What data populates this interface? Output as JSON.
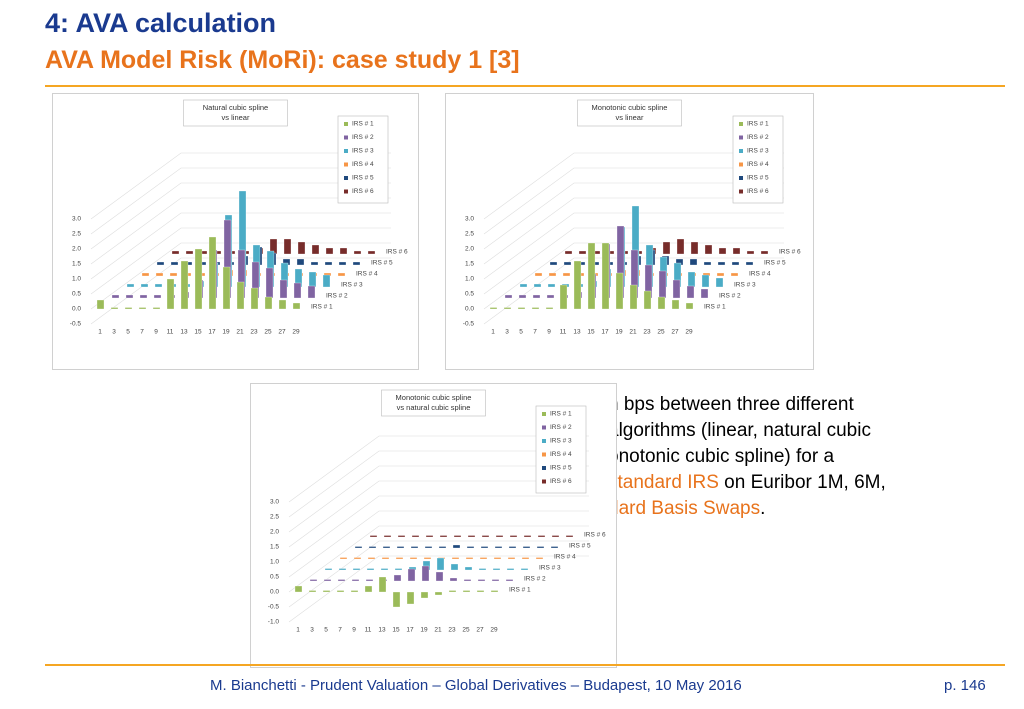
{
  "header": {
    "title": "4: AVA calculation",
    "subtitle": "AVA Model Risk (MoRi): case study 1 [3]"
  },
  "body": {
    "lines": [
      [
        {
          "text": "n bps between three different"
        }
      ],
      [
        {
          "text": "algorithms (linear, natural cubic"
        }
      ],
      [
        {
          "text": "onotonic cubic spline) for a"
        }
      ],
      [
        {
          "text": "standard IRS",
          "highlight": true
        },
        {
          "text": " on Euribor 1M, 6M,"
        }
      ],
      [
        {
          "text": "dard Basis Swaps",
          "highlight": true
        },
        {
          "text": "."
        }
      ]
    ]
  },
  "charts": [
    {
      "type": "bar3d",
      "title": [
        "Natural cubic spline",
        "vs linear"
      ],
      "categories": [
        1,
        3,
        5,
        7,
        9,
        11,
        13,
        15,
        17,
        19,
        21,
        23,
        25,
        27,
        29
      ],
      "ylim": [
        -0.5,
        3.0
      ],
      "yticks": [
        {
          "value": -0.5,
          "label": "-0.5"
        },
        {
          "value": 0,
          "label": "0.0"
        },
        {
          "value": 0.5,
          "label": "0.5"
        },
        {
          "value": 1,
          "label": "1.0"
        },
        {
          "value": 1.5,
          "label": "1.5"
        },
        {
          "value": 2,
          "label": "2.0"
        },
        {
          "value": 2.5,
          "label": "2.5"
        },
        {
          "value": 3,
          "label": "3.0"
        }
      ],
      "series": [
        {
          "name": "IRS # 1",
          "color": "#9bbb59",
          "values": [
            0.3,
            0.05,
            0.05,
            0.05,
            0.05,
            1.0,
            1.6,
            2.0,
            2.4,
            1.4,
            0.9,
            0.7,
            0.4,
            0.3,
            0.2
          ]
        },
        {
          "name": "IRS # 2",
          "color": "#8064a2",
          "values": [
            0.1,
            0.1,
            0.1,
            0.1,
            0.1,
            0.2,
            0.6,
            1.6,
            2.6,
            1.6,
            1.2,
            1.0,
            0.6,
            0.5,
            0.4
          ]
        },
        {
          "name": "IRS # 3",
          "color": "#4bacc6",
          "values": [
            0.1,
            0.1,
            0.1,
            0.1,
            0.1,
            0.2,
            0.8,
            2.4,
            3.2,
            1.4,
            1.2,
            0.8,
            0.6,
            0.5,
            0.4
          ]
        },
        {
          "name": "IRS # 4",
          "color": "#f79646",
          "values": [
            0.1,
            0.1,
            0.1,
            0.1,
            0.1,
            0.1,
            0.2,
            0.2,
            0.1,
            0.1,
            0.1,
            0.1,
            0.1,
            0.1,
            0.1
          ]
        },
        {
          "name": "IRS # 5",
          "color": "#1f497d",
          "values": [
            0.1,
            0.1,
            0.1,
            0.1,
            0.1,
            0.1,
            0.3,
            0.6,
            0.4,
            0.2,
            0.2,
            0.1,
            0.1,
            0.1,
            0.1
          ]
        },
        {
          "name": "IRS # 6",
          "color": "#772c2a",
          "values": [
            0.1,
            0.1,
            0.1,
            0.1,
            0.1,
            0.1,
            0.2,
            0.5,
            0.5,
            0.4,
            0.3,
            0.2,
            0.2,
            0.1,
            0.1
          ]
        }
      ]
    },
    {
      "type": "bar3d",
      "title": [
        "Monotonic cubic spline",
        "vs linear"
      ],
      "categories": [
        1,
        3,
        5,
        7,
        9,
        11,
        13,
        15,
        17,
        19,
        21,
        23,
        25,
        27,
        29
      ],
      "ylim": [
        -0.5,
        3.0
      ],
      "yticks": [
        {
          "value": -0.5,
          "label": "-0.5"
        },
        {
          "value": 0,
          "label": "0.0"
        },
        {
          "value": 0.5,
          "label": "0.5"
        },
        {
          "value": 1,
          "label": "1.0"
        },
        {
          "value": 1.5,
          "label": "1.5"
        },
        {
          "value": 2,
          "label": "2.0"
        },
        {
          "value": 2.5,
          "label": "2.5"
        },
        {
          "value": 3,
          "label": "3.0"
        }
      ],
      "series": [
        {
          "name": "IRS # 1",
          "color": "#9bbb59",
          "values": [
            0.05,
            0.05,
            0.05,
            0.05,
            0.05,
            0.8,
            1.6,
            2.2,
            2.2,
            1.2,
            0.8,
            0.6,
            0.4,
            0.3,
            0.2
          ]
        },
        {
          "name": "IRS # 2",
          "color": "#8064a2",
          "values": [
            0.1,
            0.1,
            0.1,
            0.1,
            0.1,
            0.2,
            0.8,
            1.8,
            2.4,
            1.6,
            1.1,
            0.9,
            0.6,
            0.4,
            0.3
          ]
        },
        {
          "name": "IRS # 3",
          "color": "#4bacc6",
          "values": [
            0.1,
            0.1,
            0.1,
            0.1,
            0.1,
            0.2,
            0.6,
            2.0,
            2.7,
            1.4,
            1.0,
            0.8,
            0.5,
            0.4,
            0.3
          ]
        },
        {
          "name": "IRS # 4",
          "color": "#f79646",
          "values": [
            0.1,
            0.1,
            0.1,
            0.1,
            0.1,
            0.1,
            0.2,
            0.2,
            0.1,
            0.1,
            0.1,
            0.1,
            0.1,
            0.1,
            0.1
          ]
        },
        {
          "name": "IRS # 5",
          "color": "#1f497d",
          "values": [
            0.1,
            0.1,
            0.1,
            0.1,
            0.1,
            0.1,
            0.3,
            0.5,
            0.3,
            0.2,
            0.2,
            0.1,
            0.1,
            0.1,
            0.1
          ]
        },
        {
          "name": "IRS # 6",
          "color": "#772c2a",
          "values": [
            0.1,
            0.1,
            0.1,
            0.1,
            0.1,
            0.1,
            0.2,
            0.4,
            0.5,
            0.4,
            0.3,
            0.2,
            0.2,
            0.1,
            0.1
          ]
        }
      ]
    },
    {
      "type": "bar3d",
      "title": [
        "Monotonic cubic spline",
        "vs natural cubic spline"
      ],
      "categories": [
        1,
        3,
        5,
        7,
        9,
        11,
        13,
        15,
        17,
        19,
        21,
        23,
        25,
        27,
        29
      ],
      "ylim": [
        -1.0,
        3.0
      ],
      "yticks": [
        {
          "value": -1,
          "label": "-1.0"
        },
        {
          "value": -0.5,
          "label": "-0.5"
        },
        {
          "value": 0,
          "label": "0.0"
        },
        {
          "value": 0.5,
          "label": "0.5"
        },
        {
          "value": 1,
          "label": "1.0"
        },
        {
          "value": 1.5,
          "label": "1.5"
        },
        {
          "value": 2,
          "label": "2.0"
        },
        {
          "value": 2.5,
          "label": "2.5"
        },
        {
          "value": 3,
          "label": "3.0"
        }
      ],
      "series": [
        {
          "name": "IRS # 1",
          "color": "#9bbb59",
          "values": [
            0.2,
            0.05,
            0.05,
            0.05,
            0.05,
            0.2,
            0.5,
            -0.5,
            -0.4,
            -0.2,
            -0.1,
            0.05,
            0.05,
            0.05,
            0.05
          ]
        },
        {
          "name": "IRS # 2",
          "color": "#8064a2",
          "values": [
            0.05,
            0.05,
            0.05,
            0.05,
            0.05,
            0.05,
            0.2,
            0.4,
            0.5,
            0.3,
            0.1,
            0.05,
            0.05,
            0.05,
            0.05
          ]
        },
        {
          "name": "IRS # 3",
          "color": "#4bacc6",
          "values": [
            0.05,
            0.05,
            0.05,
            0.05,
            0.05,
            0.05,
            0.1,
            0.3,
            0.4,
            0.2,
            0.1,
            0.05,
            0.05,
            0.05,
            0.05
          ]
        },
        {
          "name": "IRS # 4",
          "color": "#f79646",
          "values": [
            0.05,
            0.05,
            0.05,
            0.05,
            0.05,
            0.05,
            0.05,
            0.05,
            0.05,
            0.05,
            0.05,
            0.05,
            0.05,
            0.05,
            0.05
          ]
        },
        {
          "name": "IRS # 5",
          "color": "#1f497d",
          "values": [
            0.05,
            0.05,
            0.05,
            0.05,
            0.05,
            0.05,
            0.05,
            0.1,
            0.05,
            0.05,
            0.05,
            0.05,
            0.05,
            0.05,
            0.05
          ]
        },
        {
          "name": "IRS # 6",
          "color": "#772c2a",
          "values": [
            0.05,
            0.05,
            0.05,
            0.05,
            0.05,
            0.05,
            0.05,
            0.05,
            0.05,
            0.05,
            0.05,
            0.05,
            0.05,
            0.05,
            0.05
          ]
        }
      ]
    }
  ],
  "footer": {
    "text": "M. Bianchetti - Prudent Valuation – Global Derivatives – Budapest, 10 May 2016",
    "page": "p. 146"
  }
}
